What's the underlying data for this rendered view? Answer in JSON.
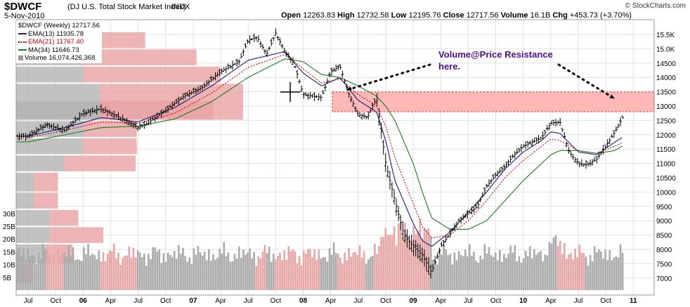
{
  "header": {
    "symbol": "$DWCF",
    "index_name": "(DJ U.S. Total Stock Market Index)",
    "exchange": "INDX",
    "date": "5-Nov-2010",
    "open_label": "Open",
    "open": "12263.83",
    "high_label": "High",
    "high": "12732.58",
    "low_label": "Low",
    "low": "12195.76",
    "close_label": "Close",
    "close": "12717.56",
    "volume_label": "Volume",
    "volume": "16.1B",
    "chg_label": "Chg",
    "chg": "+453.73 (+3.70%)",
    "credit": "© StockCharts.com"
  },
  "legend": [
    {
      "text": "$DWCF (Weekly) 12717.56",
      "color": "#000000",
      "style": "none"
    },
    {
      "text": "EMA(13) 11935.78",
      "color": "#1a1a80",
      "style": "solid"
    },
    {
      "text": "EMA(21) 11767.40",
      "color": "#cc0000",
      "style": "dotted"
    },
    {
      "text": "MA(34) 11646.73",
      "color": "#1e7a1e",
      "style": "solid"
    },
    {
      "text": "Volume 16,074,426,368",
      "color": "#999999",
      "style": "box"
    }
  ],
  "chart_data": {
    "type": "line",
    "title": "$DWCF (Weekly) 12717.56",
    "y_price_ticks": [
      7000,
      7500,
      8000,
      8500,
      9000,
      9500,
      10000,
      10500,
      11000,
      11500,
      12000,
      12500,
      13000,
      13500,
      14000,
      14500,
      15000,
      15500
    ],
    "y_price_tick_labels": [
      "7000",
      "7500",
      "8000",
      "8500",
      "9000",
      "9500",
      "10000",
      "10500",
      "11000",
      "11500",
      "12000",
      "12500",
      "13000",
      "13500",
      "14000",
      "14500",
      "15.0K",
      "15.5K"
    ],
    "volume_ticks": [
      5,
      10,
      15,
      20,
      25,
      30
    ],
    "volume_tick_labels": [
      "5B",
      "10B",
      "15B",
      "20B",
      "25B",
      "30B"
    ],
    "x_ticks": [
      {
        "t": 0,
        "label": "Jul",
        "bold": false
      },
      {
        "t": 3,
        "label": "Oct",
        "bold": false
      },
      {
        "t": 6,
        "label": "06",
        "bold": true
      },
      {
        "t": 9,
        "label": "Apr",
        "bold": false
      },
      {
        "t": 12,
        "label": "Jul",
        "bold": false
      },
      {
        "t": 15,
        "label": "Oct",
        "bold": false
      },
      {
        "t": 18,
        "label": "07",
        "bold": true
      },
      {
        "t": 21,
        "label": "Apr",
        "bold": false
      },
      {
        "t": 24,
        "label": "Jul",
        "bold": false
      },
      {
        "t": 27,
        "label": "Oct",
        "bold": false
      },
      {
        "t": 30,
        "label": "08",
        "bold": true
      },
      {
        "t": 33,
        "label": "Apr",
        "bold": false
      },
      {
        "t": 36,
        "label": "Jul",
        "bold": false
      },
      {
        "t": 39,
        "label": "Oct",
        "bold": false
      },
      {
        "t": 42,
        "label": "09",
        "bold": true
      },
      {
        "t": 45,
        "label": "Apr",
        "bold": false
      },
      {
        "t": 48,
        "label": "Jul",
        "bold": false
      },
      {
        "t": 51,
        "label": "Oct",
        "bold": false
      },
      {
        "t": 54,
        "label": "10",
        "bold": true
      },
      {
        "t": 57,
        "label": "Apr",
        "bold": false
      },
      {
        "t": 60,
        "label": "Jul",
        "bold": false
      },
      {
        "t": 63,
        "label": "Oct",
        "bold": false
      },
      {
        "t": 66,
        "label": "11",
        "bold": true
      }
    ],
    "series": [
      {
        "name": "$DWCF (Weekly) 12717.56",
        "t": [
          0,
          2,
          4,
          6,
          8,
          10,
          12,
          13,
          15,
          17,
          19,
          21,
          23,
          24,
          25,
          26,
          27,
          28,
          29,
          30,
          32,
          33,
          34,
          35,
          36,
          37,
          38,
          39,
          40,
          41,
          42,
          43,
          44,
          45,
          47,
          49,
          50,
          51,
          52,
          53,
          54,
          56,
          57,
          58,
          59,
          60,
          61,
          62,
          63,
          64,
          65
        ],
        "values": [
          11950,
          12350,
          12150,
          12750,
          12900,
          12600,
          12250,
          12400,
          12850,
          13350,
          13650,
          14200,
          14550,
          15300,
          15400,
          14800,
          15550,
          14900,
          14500,
          13400,
          13300,
          14200,
          14400,
          13400,
          12700,
          12600,
          13300,
          11000,
          9700,
          8500,
          8100,
          7800,
          7200,
          8100,
          9000,
          9500,
          10200,
          10600,
          10900,
          11300,
          11600,
          11900,
          12400,
          12450,
          11400,
          11000,
          10950,
          11150,
          11600,
          12100,
          12700
        ]
      },
      {
        "name": "EMA(13) 11935.78",
        "t": [
          0,
          4,
          8,
          12,
          16,
          20,
          24,
          28,
          30,
          32,
          34,
          36,
          38,
          39,
          40,
          42,
          43,
          44,
          46,
          48,
          50,
          52,
          54,
          56,
          57,
          58,
          60,
          62,
          64,
          65
        ],
        "values": [
          11950,
          12250,
          12600,
          12450,
          12950,
          13700,
          14600,
          14900,
          14150,
          13700,
          14000,
          13200,
          12800,
          11800,
          10400,
          8900,
          8300,
          8100,
          8600,
          9300,
          10000,
          10800,
          11400,
          11800,
          12100,
          12050,
          11400,
          11300,
          11750,
          11936
        ]
      },
      {
        "name": "EMA(21) 11767.40",
        "t": [
          0,
          4,
          8,
          12,
          16,
          20,
          24,
          28,
          30,
          32,
          34,
          36,
          38,
          39,
          40,
          42,
          43,
          44,
          46,
          48,
          50,
          52,
          54,
          56,
          57,
          58,
          60,
          62,
          64,
          65
        ],
        "values": [
          11900,
          12150,
          12450,
          12400,
          12750,
          13450,
          14350,
          14800,
          14300,
          13800,
          13950,
          13400,
          13000,
          12300,
          11200,
          9600,
          8800,
          8400,
          8500,
          9000,
          9700,
          10500,
          11100,
          11600,
          11850,
          11800,
          11450,
          11350,
          11600,
          11767
        ]
      },
      {
        "name": "MA(34) 11646.73",
        "t": [
          0,
          4,
          8,
          12,
          16,
          20,
          24,
          28,
          30,
          32,
          34,
          36,
          38,
          39,
          40,
          42,
          43,
          44,
          46,
          48,
          50,
          52,
          54,
          56,
          57,
          58,
          60,
          62,
          64,
          65
        ],
        "values": [
          11750,
          12000,
          12250,
          12300,
          12550,
          13150,
          14000,
          14650,
          14550,
          14100,
          14000,
          13700,
          13350,
          13000,
          12500,
          11000,
          10000,
          9100,
          8700,
          8700,
          9000,
          9700,
          10400,
          11000,
          11300,
          11450,
          11450,
          11350,
          11450,
          11647
        ]
      }
    ],
    "volume_by_price": [
      {
        "low": 15000,
        "high": 15600,
        "down": 0.56,
        "up": 0.52
      },
      {
        "low": 14400,
        "high": 15000,
        "down": 0.56,
        "up": 0.95
      },
      {
        "low": 13800,
        "high": 14400,
        "down": 0.56,
        "up": 1.15
      },
      {
        "low": 12500,
        "high": 13800,
        "down": 0.7,
        "up": 1.2
      },
      {
        "low": 12500,
        "high": 13200,
        "down": 0.7,
        "up": 0.95
      },
      {
        "low": 11900,
        "high": 12500,
        "down": 0.56,
        "up": 0.45
      },
      {
        "low": 11300,
        "high": 11900,
        "down": 0.56,
        "up": 0.45
      },
      {
        "low": 10700,
        "high": 11300,
        "down": 0.4,
        "up": 0.6
      },
      {
        "low": 10000,
        "high": 10700,
        "down": 0.15,
        "up": 0.2
      },
      {
        "low": 9400,
        "high": 10000,
        "down": 0.15,
        "up": 0.2
      },
      {
        "low": 8800,
        "high": 9400,
        "down": 0.28,
        "up": 0.24
      },
      {
        "low": 8200,
        "high": 8800,
        "down": 0.28,
        "up": 0.45
      },
      {
        "low": 7500,
        "high": 8200,
        "down": 0.25,
        "up": 0.22
      },
      {
        "low": 6800,
        "high": 7500,
        "down": 0.05,
        "up": 0.08
      }
    ],
    "resistance_band": [
      12800,
      13500
    ],
    "annotations": [
      {
        "text": "Volume@Price Resistance",
        "line2": "here."
      }
    ],
    "volume_level_typical_billions": 14,
    "grid": true,
    "legend_position": "top-left"
  }
}
